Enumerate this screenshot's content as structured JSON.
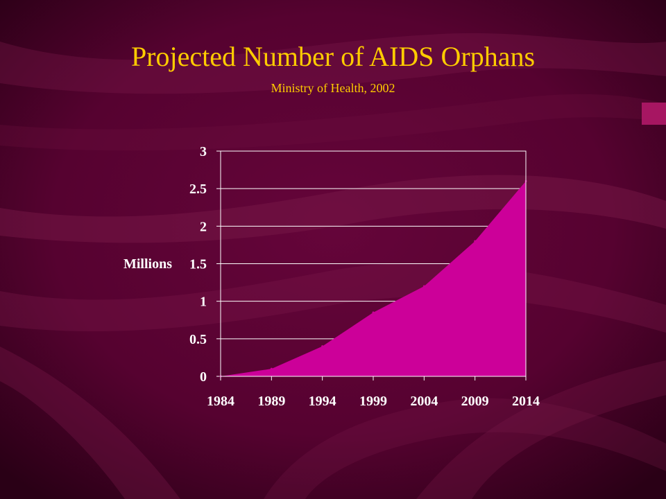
{
  "colors": {
    "background": "#5a0232",
    "title": "#ffcc00",
    "text": "#ffffff",
    "area_fill": "#cc0099",
    "grid": "#ffffff"
  },
  "slide": {
    "title": "Projected Number of AIDS Orphans",
    "subtitle": "Ministry of Health, 2002"
  },
  "chart_data": {
    "type": "area",
    "title": "",
    "xlabel": "",
    "ylabel": "Millions",
    "x": [
      1984,
      1989,
      1994,
      1999,
      2004,
      2009,
      2014
    ],
    "xtick_labels": [
      "1984",
      "1989",
      "1994",
      "1999",
      "2004",
      "2009",
      "2014"
    ],
    "ytick_labels": [
      "0",
      "0.5",
      "1",
      "1.5",
      "2",
      "2.5",
      "3"
    ],
    "ylim": [
      0,
      3
    ],
    "grid": true,
    "series": [
      {
        "values": [
          0,
          0.1,
          0.4,
          0.85,
          1.2,
          1.8,
          2.6
        ]
      }
    ]
  }
}
